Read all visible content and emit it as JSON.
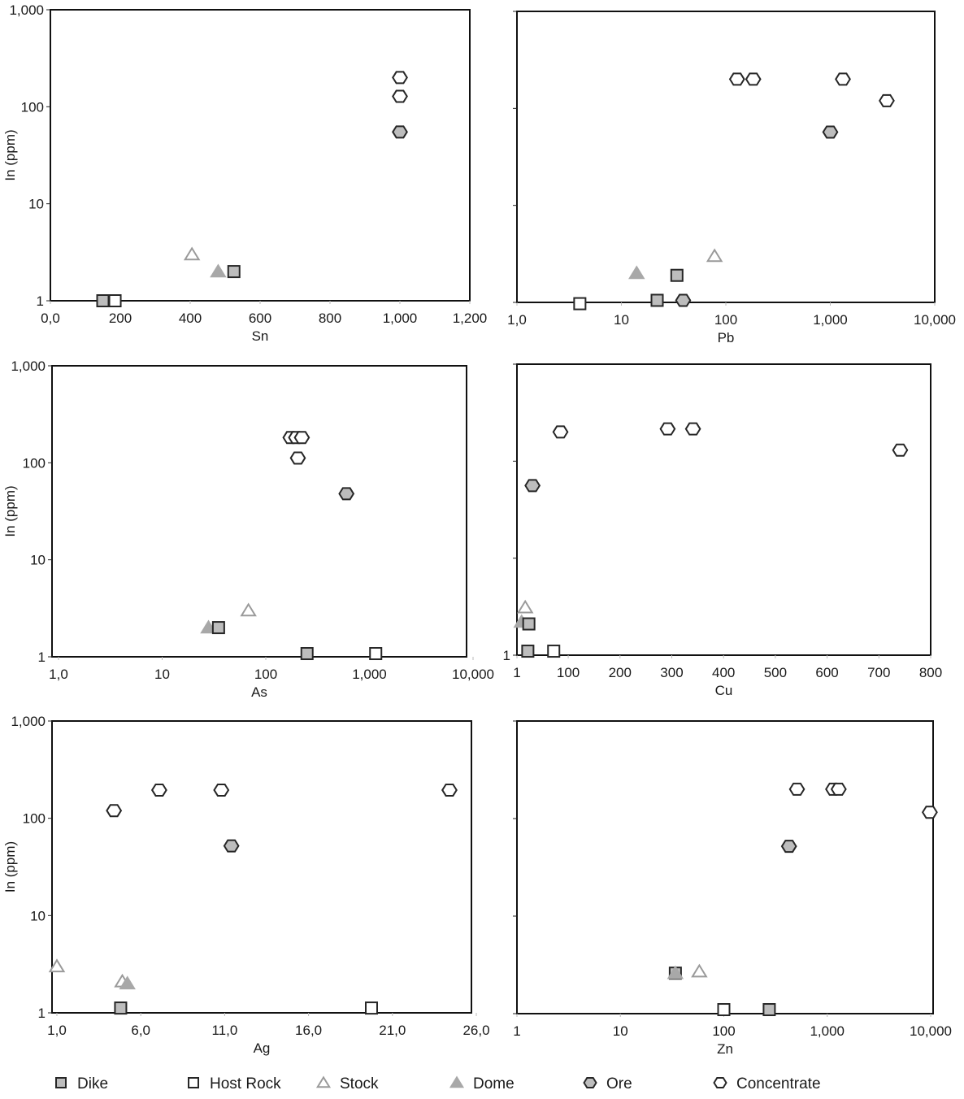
{
  "styles": {
    "Dike": {
      "shape": "square",
      "fill": "#bdbdbd",
      "stroke": "#262626"
    },
    "Host Rock": {
      "shape": "square",
      "fill": "#ffffff",
      "stroke": "#262626"
    },
    "Stock": {
      "shape": "triangle",
      "fill": "#ffffff",
      "stroke": "#9a9a9a"
    },
    "Dome": {
      "shape": "triangle",
      "fill": "#a8a8a8",
      "stroke": "#a8a8a8"
    },
    "Ore": {
      "shape": "hexagon",
      "fill": "#bdbdbd",
      "stroke": "#262626"
    },
    "Concentrate": {
      "shape": "hexagon",
      "fill": "#ffffff",
      "stroke": "#262626"
    }
  },
  "legend": [
    "Dike",
    "Host Rock",
    "Stock",
    "Dome",
    "Ore",
    "Concentrate"
  ],
  "chart_data": [
    {
      "type": "scatter",
      "xlabel": "Sn",
      "ylabel": "In (ppm)",
      "xscale": "linear",
      "yscale": "log",
      "xlim": [
        0,
        1200
      ],
      "ylim": [
        1,
        1000
      ],
      "xticks": [
        0,
        200,
        400,
        600,
        800,
        1000,
        1200
      ],
      "xtick_labels": [
        "0,0",
        "200",
        "400",
        "600",
        "800",
        "1,000",
        "1,200"
      ],
      "yticks": [
        1,
        10,
        100,
        1000
      ],
      "ytick_labels": [
        "1",
        "10",
        "100",
        "1,000"
      ],
      "points": [
        {
          "series": "Dike",
          "x": 150,
          "y": 1
        },
        {
          "series": "Host Rock",
          "x": 185,
          "y": 1
        },
        {
          "series": "Stock",
          "x": 405,
          "y": 3
        },
        {
          "series": "Dome",
          "x": 480,
          "y": 2
        },
        {
          "series": "Dike",
          "x": 525,
          "y": 2
        },
        {
          "series": "Concentrate",
          "x": 1000,
          "y": 200
        },
        {
          "series": "Concentrate",
          "x": 1000,
          "y": 128
        },
        {
          "series": "Ore",
          "x": 1000,
          "y": 55
        }
      ]
    },
    {
      "type": "scatter",
      "xlabel": "Pb",
      "ylabel": "",
      "xscale": "log",
      "yscale": "log",
      "xlim": [
        1,
        10000
      ],
      "ylim": [
        1,
        1000
      ],
      "xticks": [
        1,
        10,
        100,
        1000,
        10000
      ],
      "xtick_labels": [
        "1,0",
        "10",
        "100",
        "1,000",
        "10,000"
      ],
      "yticks": [
        1,
        10,
        100,
        1000
      ],
      "ytick_labels": [],
      "points": [
        {
          "series": "Host Rock",
          "x": 4,
          "y": 0.97
        },
        {
          "series": "Dike",
          "x": 22,
          "y": 1.05
        },
        {
          "series": "Ore",
          "x": 39,
          "y": 1.05
        },
        {
          "series": "Dike",
          "x": 34,
          "y": 1.9
        },
        {
          "series": "Dome",
          "x": 14,
          "y": 2
        },
        {
          "series": "Stock",
          "x": 78,
          "y": 3
        },
        {
          "series": "Concentrate",
          "x": 128,
          "y": 200
        },
        {
          "series": "Concentrate",
          "x": 183,
          "y": 200
        },
        {
          "series": "Concentrate",
          "x": 1320,
          "y": 200
        },
        {
          "series": "Concentrate",
          "x": 3470,
          "y": 120
        },
        {
          "series": "Ore",
          "x": 1000,
          "y": 57
        }
      ]
    },
    {
      "type": "scatter",
      "xlabel": "As",
      "ylabel": "In (ppm)",
      "xscale": "log",
      "yscale": "log",
      "xlim": [
        1,
        10000
      ],
      "ylim": [
        1,
        1000
      ],
      "xticks": [
        1,
        10,
        100,
        1000,
        10000
      ],
      "xtick_labels": [
        "1,0",
        "10",
        "100",
        "1,000",
        "10,000"
      ],
      "yticks": [
        1,
        10,
        100,
        1000
      ],
      "ytick_labels": [
        "1",
        "10",
        "100",
        "1,000"
      ],
      "points": [
        {
          "series": "Dome",
          "x": 28,
          "y": 2
        },
        {
          "series": "Dike",
          "x": 35,
          "y": 2
        },
        {
          "series": "Stock",
          "x": 68,
          "y": 3
        },
        {
          "series": "Dike",
          "x": 250,
          "y": 1.08
        },
        {
          "series": "Host Rock",
          "x": 1150,
          "y": 1.08
        },
        {
          "series": "Concentrate",
          "x": 173,
          "y": 182
        },
        {
          "series": "Concentrate",
          "x": 196,
          "y": 182
        },
        {
          "series": "Concentrate",
          "x": 223,
          "y": 182
        },
        {
          "series": "Concentrate",
          "x": 204,
          "y": 112
        },
        {
          "series": "Ore",
          "x": 600,
          "y": 48
        }
      ]
    },
    {
      "type": "scatter",
      "xlabel": "Cu",
      "ylabel": "",
      "xscale": "linear",
      "yscale": "log",
      "xlim": [
        1,
        800
      ],
      "ylim": [
        1,
        1000
      ],
      "xticks": [
        1,
        100,
        200,
        300,
        400,
        500,
        600,
        700,
        800
      ],
      "xtick_labels": [
        "1",
        "100",
        "200",
        "300",
        "400",
        "500",
        "600",
        "700",
        "800"
      ],
      "yticks": [
        1,
        10,
        100,
        1000
      ],
      "ytick_labels": [
        "1"
      ],
      "points": [
        {
          "series": "Stock",
          "x": 17,
          "y": 3.1
        },
        {
          "series": "Dome",
          "x": 10,
          "y": 2.2
        },
        {
          "series": "Dike",
          "x": 24,
          "y": 2.1
        },
        {
          "series": "Dike",
          "x": 22,
          "y": 1.1
        },
        {
          "series": "Host Rock",
          "x": 72,
          "y": 1.1
        },
        {
          "series": "Ore",
          "x": 31,
          "y": 56
        },
        {
          "series": "Concentrate",
          "x": 85,
          "y": 200
        },
        {
          "series": "Concentrate",
          "x": 292,
          "y": 215
        },
        {
          "series": "Concentrate",
          "x": 341,
          "y": 215
        },
        {
          "series": "Concentrate",
          "x": 741,
          "y": 130
        }
      ]
    },
    {
      "type": "scatter",
      "xlabel": "Ag",
      "ylabel": "In (ppm)",
      "xscale": "linear",
      "yscale": "log",
      "xlim": [
        1,
        26
      ],
      "ylim": [
        1,
        1000
      ],
      "xticks": [
        1,
        6,
        11,
        16,
        21,
        26
      ],
      "xtick_labels": [
        "1,0",
        "6,0",
        "11,0",
        "16,0",
        "21,0",
        "26,0"
      ],
      "yticks": [
        1,
        10,
        100,
        1000
      ],
      "ytick_labels": [
        "1",
        "10",
        "100",
        "1,000"
      ],
      "points": [
        {
          "series": "Stock",
          "x": 1.0,
          "y": 3
        },
        {
          "series": "Stock",
          "x": 4.9,
          "y": 2.1
        },
        {
          "series": "Dome",
          "x": 5.2,
          "y": 2
        },
        {
          "series": "Dike",
          "x": 4.8,
          "y": 1.12
        },
        {
          "series": "Host Rock",
          "x": 19.75,
          "y": 1.12
        },
        {
          "series": "Concentrate",
          "x": 4.4,
          "y": 120
        },
        {
          "series": "Concentrate",
          "x": 7.1,
          "y": 195
        },
        {
          "series": "Concentrate",
          "x": 10.8,
          "y": 195
        },
        {
          "series": "Concentrate",
          "x": 24.4,
          "y": 195
        },
        {
          "series": "Ore",
          "x": 11.4,
          "y": 52
        }
      ]
    },
    {
      "type": "scatter",
      "xlabel": "Zn",
      "ylabel": "",
      "xscale": "log",
      "yscale": "log",
      "xlim": [
        1,
        10000
      ],
      "ylim": [
        1,
        1000
      ],
      "xticks": [
        1,
        10,
        100,
        1000,
        10000
      ],
      "xtick_labels": [
        "1",
        "10",
        "100",
        "1,000",
        "10,000"
      ],
      "yticks": [
        1,
        10,
        100,
        1000
      ],
      "ytick_labels": [],
      "points": [
        {
          "series": "Dike",
          "x": 34,
          "y": 2.6
        },
        {
          "series": "Stock",
          "x": 58,
          "y": 2.7
        },
        {
          "series": "Dome",
          "x": 34,
          "y": 2.6
        },
        {
          "series": "Host Rock",
          "x": 100,
          "y": 1.1
        },
        {
          "series": "Dike",
          "x": 275,
          "y": 1.1
        },
        {
          "series": "Ore",
          "x": 427,
          "y": 52
        },
        {
          "series": "Concentrate",
          "x": 510,
          "y": 200
        },
        {
          "series": "Concentrate",
          "x": 1140,
          "y": 200
        },
        {
          "series": "Concentrate",
          "x": 1290,
          "y": 200
        },
        {
          "series": "Concentrate",
          "x": 9800,
          "y": 116
        }
      ]
    }
  ]
}
